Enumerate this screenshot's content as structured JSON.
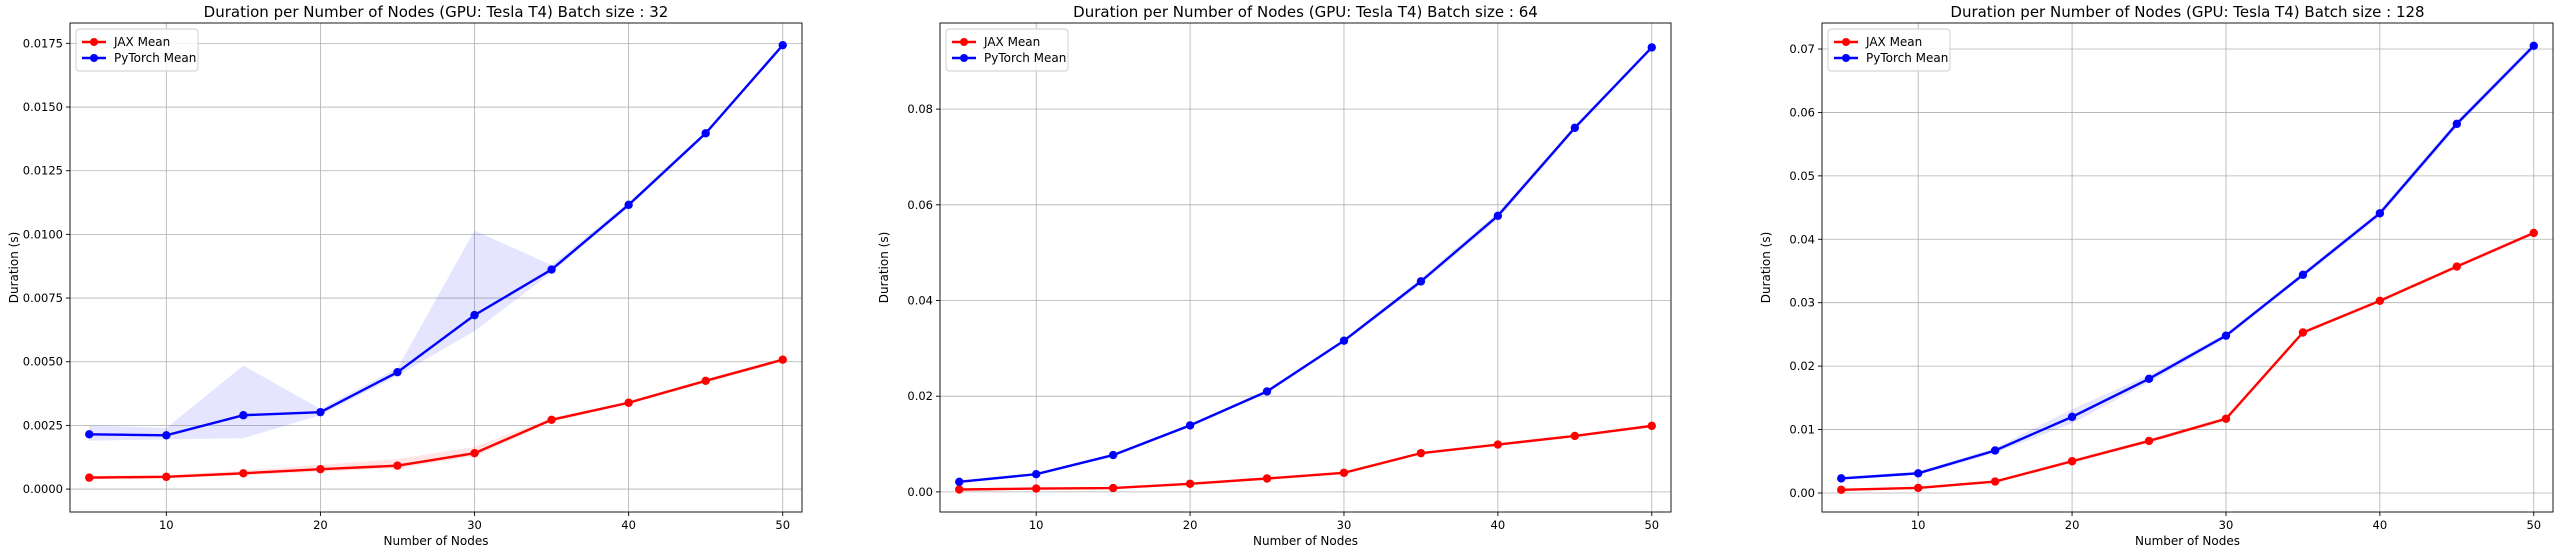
{
  "chart_data": [
    {
      "type": "line",
      "title": "Duration per Number of Nodes (GPU: Tesla T4) Batch size : 32",
      "xlabel": "Number of Nodes",
      "ylabel": "Duration (s)",
      "grid": true,
      "legend": "top-left",
      "xlim": [
        3.75,
        51.25
      ],
      "ylim": [
        -0.0009,
        0.0183
      ],
      "xticks": [
        10,
        20,
        30,
        40,
        50
      ],
      "yticks": [
        0.0,
        0.0025,
        0.005,
        0.0075,
        0.01,
        0.0125,
        0.015,
        0.0175
      ],
      "ytick_labels": [
        "0.0000",
        "0.0025",
        "0.0050",
        "0.0075",
        "0.0100",
        "0.0125",
        "0.0150",
        "0.0175"
      ],
      "x": [
        5,
        10,
        15,
        20,
        25,
        30,
        35,
        40,
        45,
        50
      ],
      "series": [
        {
          "name": "JAX Mean",
          "color": "#ff0000",
          "values": [
            0.00045,
            0.00048,
            0.00062,
            0.00078,
            0.00092,
            0.00141,
            0.00272,
            0.00339,
            0.00425,
            0.00508
          ],
          "band_upper": [
            0.00052,
            0.00055,
            0.00072,
            0.00095,
            0.00118,
            0.00165,
            0.0028,
            0.00345,
            0.00432,
            0.00515
          ],
          "band_lower": [
            0.0004,
            0.00042,
            0.00055,
            0.00068,
            0.00082,
            0.00128,
            0.00265,
            0.00333,
            0.00418,
            0.005
          ]
        },
        {
          "name": "PyTorch Mean",
          "color": "#0000ff",
          "values": [
            0.00215,
            0.00211,
            0.0029,
            0.00302,
            0.00459,
            0.00683,
            0.00862,
            0.01116,
            0.01397,
            0.01743
          ],
          "band_upper": [
            0.0025,
            0.0024,
            0.00485,
            0.00315,
            0.00475,
            0.01015,
            0.0088,
            0.01125,
            0.01405,
            0.0175
          ],
          "band_lower": [
            0.0019,
            0.00195,
            0.002,
            0.0029,
            0.00445,
            0.0062,
            0.0085,
            0.01108,
            0.0139,
            0.01736
          ]
        }
      ]
    },
    {
      "type": "line",
      "title": "Duration per Number of Nodes (GPU: Tesla T4) Batch size : 64",
      "xlabel": "Number of Nodes",
      "ylabel": "Duration (s)",
      "grid": true,
      "legend": "top-left",
      "xlim": [
        3.75,
        51.25
      ],
      "ylim": [
        -0.0042,
        0.098
      ],
      "xticks": [
        10,
        20,
        30,
        40,
        50
      ],
      "yticks": [
        0.0,
        0.02,
        0.04,
        0.06,
        0.08
      ],
      "ytick_labels": [
        "0.00",
        "0.02",
        "0.04",
        "0.06",
        "0.08"
      ],
      "x": [
        5,
        10,
        15,
        20,
        25,
        30,
        35,
        40,
        45,
        50
      ],
      "series": [
        {
          "name": "JAX Mean",
          "color": "#ff0000",
          "values": [
            0.0005,
            0.0007,
            0.0008,
            0.0017,
            0.0028,
            0.004,
            0.0081,
            0.0099,
            0.0117,
            0.0138
          ],
          "band_upper": [
            0.0006,
            0.0008,
            0.0009,
            0.0019,
            0.003,
            0.0042,
            0.0083,
            0.0101,
            0.0119,
            0.014
          ],
          "band_lower": [
            0.0004,
            0.0006,
            0.0007,
            0.0015,
            0.0026,
            0.0038,
            0.0079,
            0.0097,
            0.0115,
            0.0136
          ]
        },
        {
          "name": "PyTorch Mean",
          "color": "#0000ff",
          "values": [
            0.0021,
            0.0037,
            0.0077,
            0.0139,
            0.021,
            0.0316,
            0.044,
            0.0577,
            0.0761,
            0.0929
          ],
          "band_upper": [
            0.0023,
            0.0039,
            0.008,
            0.0142,
            0.0214,
            0.032,
            0.0446,
            0.0584,
            0.0766,
            0.0933
          ],
          "band_lower": [
            0.0019,
            0.0035,
            0.0074,
            0.0136,
            0.0206,
            0.0312,
            0.0434,
            0.057,
            0.0756,
            0.0925
          ]
        }
      ]
    },
    {
      "type": "line",
      "title": "Duration per Number of Nodes (GPU: Tesla T4) Batch size : 128",
      "xlabel": "Number of Nodes",
      "ylabel": "Duration (s)",
      "grid": true,
      "legend": "top-left",
      "xlim": [
        3.75,
        51.25
      ],
      "ylim": [
        -0.003,
        0.0741
      ],
      "xticks": [
        10,
        20,
        30,
        40,
        50
      ],
      "yticks": [
        0.0,
        0.01,
        0.02,
        0.03,
        0.04,
        0.05,
        0.06,
        0.07
      ],
      "ytick_labels": [
        "0.00",
        "0.01",
        "0.02",
        "0.03",
        "0.04",
        "0.05",
        "0.06",
        "0.07"
      ],
      "x": [
        5,
        10,
        15,
        20,
        25,
        30,
        35,
        40,
        45,
        50
      ],
      "series": [
        {
          "name": "JAX Mean",
          "color": "#ff0000",
          "values": [
            0.0005,
            0.0008,
            0.0018,
            0.005,
            0.0082,
            0.0117,
            0.0253,
            0.0303,
            0.0357,
            0.041
          ],
          "band_upper": [
            0.0006,
            0.0009,
            0.002,
            0.0053,
            0.0085,
            0.012,
            0.0256,
            0.0306,
            0.036,
            0.0413
          ],
          "band_lower": [
            0.0004,
            0.0007,
            0.0016,
            0.0047,
            0.0079,
            0.0114,
            0.025,
            0.03,
            0.0354,
            0.0407
          ]
        },
        {
          "name": "PyTorch Mean",
          "color": "#0000ff",
          "values": [
            0.0023,
            0.0031,
            0.0067,
            0.012,
            0.018,
            0.0248,
            0.0344,
            0.0441,
            0.0582,
            0.0705
          ],
          "band_upper": [
            0.0025,
            0.0034,
            0.0071,
            0.0132,
            0.0186,
            0.0252,
            0.0348,
            0.0446,
            0.0587,
            0.071
          ],
          "band_lower": [
            0.0021,
            0.0028,
            0.0063,
            0.011,
            0.0174,
            0.0244,
            0.034,
            0.0436,
            0.0577,
            0.07
          ]
        }
      ]
    }
  ]
}
